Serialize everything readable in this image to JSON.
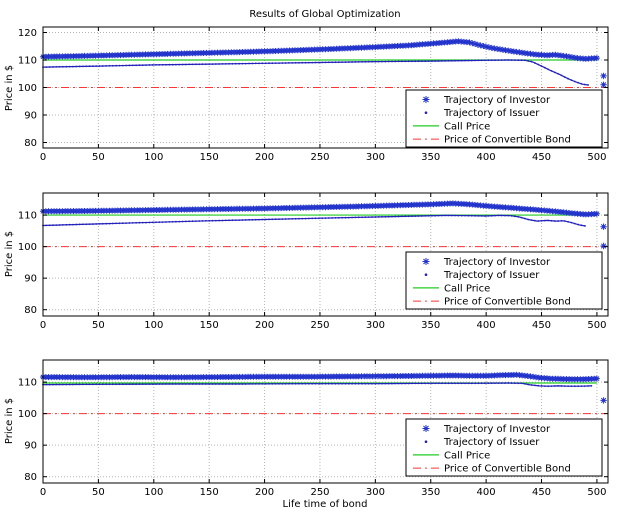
{
  "title": "Results of Global Optimization",
  "colors": {
    "investor": "#2233cc",
    "issuer": "#2222bb",
    "call": "#22cc22",
    "bond": "#ff3333",
    "grid": "#b5b5b5",
    "axis": "#000000",
    "background": "#ffffff"
  },
  "legend": {
    "items": [
      {
        "label": "Trajectory of Investor",
        "type": "asterisk"
      },
      {
        "label": "Trajectory of Issuer",
        "type": "dot"
      },
      {
        "label": "Call Price",
        "type": "line"
      },
      {
        "label": "Price of Convertible Bond",
        "type": "dashdot"
      }
    ]
  },
  "chart_data": [
    {
      "type": "line",
      "ylabel": "Price  in $",
      "xlabel": "",
      "xlim": [
        0,
        510
      ],
      "ylim": [
        78,
        122
      ],
      "xticks": [
        0,
        50,
        100,
        150,
        200,
        250,
        300,
        350,
        400,
        450,
        500
      ],
      "yticks": [
        80,
        90,
        100,
        110,
        120
      ],
      "series": {
        "investor": {
          "label": "Trajectory of Investor",
          "marker": "asterisk",
          "control_points": [
            [
              0,
              111.2
            ],
            [
              30,
              111.4
            ],
            [
              60,
              111.7
            ],
            [
              100,
              112.1
            ],
            [
              140,
              112.5
            ],
            [
              180,
              112.9
            ],
            [
              220,
              113.4
            ],
            [
              260,
              114.0
            ],
            [
              300,
              114.7
            ],
            [
              330,
              115.3
            ],
            [
              355,
              116.1
            ],
            [
              375,
              116.8
            ],
            [
              385,
              116.4
            ],
            [
              395,
              115.3
            ],
            [
              405,
              114.4
            ],
            [
              415,
              113.7
            ],
            [
              425,
              113.1
            ],
            [
              435,
              112.5
            ],
            [
              445,
              112.0
            ],
            [
              455,
              111.7
            ],
            [
              462,
              111.9
            ],
            [
              468,
              111.6
            ],
            [
              475,
              111.2
            ],
            [
              482,
              110.7
            ],
            [
              490,
              110.4
            ],
            [
              495,
              110.6
            ],
            [
              500,
              110.7
            ]
          ],
          "isolated_points": [
            [
              506,
              104.2
            ],
            [
              506,
              101.0
            ]
          ]
        },
        "issuer": {
          "label": "Trajectory of Issuer",
          "marker": "dot",
          "control_points": [
            [
              0,
              107.4
            ],
            [
              50,
              107.8
            ],
            [
              100,
              108.2
            ],
            [
              150,
              108.5
            ],
            [
              200,
              108.8
            ],
            [
              250,
              109.1
            ],
            [
              300,
              109.4
            ],
            [
              350,
              109.6
            ],
            [
              380,
              109.8
            ],
            [
              400,
              109.9
            ],
            [
              420,
              110.0
            ],
            [
              435,
              109.9
            ],
            [
              442,
              109.3
            ],
            [
              450,
              107.8
            ],
            [
              458,
              106.2
            ],
            [
              466,
              104.8
            ],
            [
              474,
              103.2
            ],
            [
              481,
              102.0
            ],
            [
              487,
              101.2
            ],
            [
              492,
              100.9
            ]
          ]
        },
        "call_price": {
          "label": "Call Price",
          "value": 110.0,
          "x_range": [
            0,
            500
          ]
        },
        "convertible_bond": {
          "label": "Price of Convertible Bond",
          "value": 100,
          "x_range": [
            0,
            508
          ]
        }
      }
    },
    {
      "type": "line",
      "ylabel": "Price  in $",
      "xlabel": "",
      "xlim": [
        0,
        510
      ],
      "ylim": [
        78,
        117
      ],
      "xticks": [
        0,
        50,
        100,
        150,
        200,
        250,
        300,
        350,
        400,
        450,
        500
      ],
      "yticks": [
        80,
        90,
        100,
        110
      ],
      "series": {
        "investor": {
          "label": "Trajectory of Investor",
          "marker": "asterisk",
          "control_points": [
            [
              0,
              111.2
            ],
            [
              40,
              111.3
            ],
            [
              80,
              111.5
            ],
            [
              120,
              111.7
            ],
            [
              160,
              111.9
            ],
            [
              200,
              112.1
            ],
            [
              240,
              112.4
            ],
            [
              280,
              112.7
            ],
            [
              320,
              113.1
            ],
            [
              350,
              113.4
            ],
            [
              370,
              113.7
            ],
            [
              385,
              113.4
            ],
            [
              400,
              112.9
            ],
            [
              415,
              112.5
            ],
            [
              430,
              112.1
            ],
            [
              445,
              111.7
            ],
            [
              458,
              111.3
            ],
            [
              470,
              110.9
            ],
            [
              480,
              110.5
            ],
            [
              490,
              110.2
            ],
            [
              500,
              110.4
            ]
          ],
          "isolated_points": [
            [
              506,
              106.3
            ],
            [
              506,
              100.2
            ]
          ]
        },
        "issuer": {
          "label": "Trajectory of Issuer",
          "marker": "dot",
          "control_points": [
            [
              0,
              106.7
            ],
            [
              50,
              107.2
            ],
            [
              100,
              107.7
            ],
            [
              150,
              108.2
            ],
            [
              200,
              108.6
            ],
            [
              250,
              109.0
            ],
            [
              300,
              109.4
            ],
            [
              340,
              109.7
            ],
            [
              365,
              109.9
            ],
            [
              385,
              109.8
            ],
            [
              400,
              109.7
            ],
            [
              412,
              109.9
            ],
            [
              422,
              109.8
            ],
            [
              430,
              109.4
            ],
            [
              438,
              108.6
            ],
            [
              446,
              108.1
            ],
            [
              455,
              108.3
            ],
            [
              463,
              108.1
            ],
            [
              470,
              108.2
            ],
            [
              477,
              107.6
            ],
            [
              484,
              106.9
            ],
            [
              490,
              106.5
            ]
          ]
        },
        "call_price": {
          "label": "Call Price",
          "value": 110.0,
          "x_range": [
            0,
            500
          ]
        },
        "convertible_bond": {
          "label": "Price of Convertible Bond",
          "value": 100,
          "x_range": [
            0,
            508
          ]
        }
      }
    },
    {
      "type": "line",
      "ylabel": "Price  in $",
      "xlabel": "Life time of bond",
      "xlim": [
        0,
        510
      ],
      "ylim": [
        78,
        117
      ],
      "xticks": [
        0,
        50,
        100,
        150,
        200,
        250,
        300,
        350,
        400,
        450,
        500
      ],
      "yticks": [
        80,
        90,
        100,
        110
      ],
      "series": {
        "investor": {
          "label": "Trajectory of Investor",
          "marker": "asterisk",
          "control_points": [
            [
              0,
              111.6
            ],
            [
              40,
              111.5
            ],
            [
              80,
              111.6
            ],
            [
              120,
              111.5
            ],
            [
              160,
              111.6
            ],
            [
              200,
              111.7
            ],
            [
              240,
              111.7
            ],
            [
              280,
              111.8
            ],
            [
              320,
              111.9
            ],
            [
              350,
              112.0
            ],
            [
              370,
              112.1
            ],
            [
              385,
              112.0
            ],
            [
              400,
              112.0
            ],
            [
              415,
              112.2
            ],
            [
              428,
              112.3
            ],
            [
              438,
              111.9
            ],
            [
              448,
              111.4
            ],
            [
              458,
              111.1
            ],
            [
              468,
              111.0
            ],
            [
              478,
              110.9
            ],
            [
              488,
              110.9
            ],
            [
              500,
              111.1
            ]
          ],
          "isolated_points": [
            [
              506,
              104.2
            ]
          ]
        },
        "issuer": {
          "label": "Trajectory of Issuer",
          "marker": "dot",
          "control_points": [
            [
              0,
              109.2
            ],
            [
              60,
              109.3
            ],
            [
              120,
              109.4
            ],
            [
              180,
              109.4
            ],
            [
              240,
              109.5
            ],
            [
              300,
              109.5
            ],
            [
              350,
              109.6
            ],
            [
              390,
              109.6
            ],
            [
              420,
              109.7
            ],
            [
              432,
              109.6
            ],
            [
              440,
              109.1
            ],
            [
              448,
              108.8
            ],
            [
              456,
              108.7
            ],
            [
              465,
              108.8
            ],
            [
              475,
              108.7
            ],
            [
              485,
              108.7
            ],
            [
              495,
              108.8
            ]
          ]
        },
        "call_price": {
          "label": "Call Price",
          "value": 109.7,
          "x_range": [
            0,
            500
          ]
        },
        "convertible_bond": {
          "label": "Price of Convertible Bond",
          "value": 100,
          "x_range": [
            0,
            508
          ]
        }
      }
    }
  ]
}
